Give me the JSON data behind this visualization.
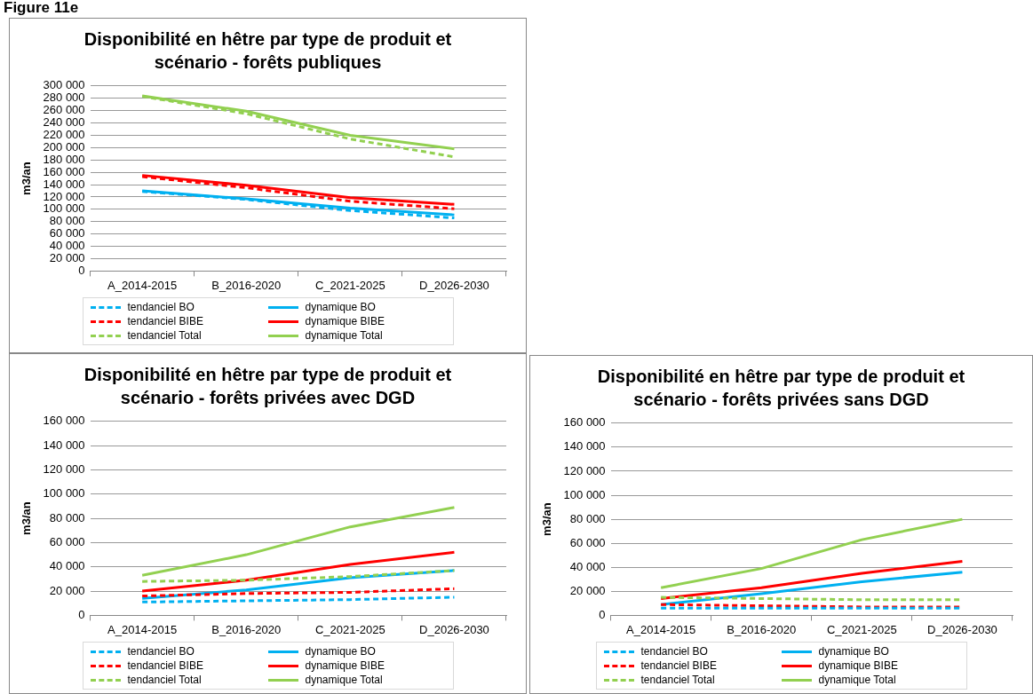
{
  "chart_data": [
    {
      "type": "line",
      "title": "Disponibilité en hêtre par type de produit et scénario - forêts publiques",
      "ylabel": "m3/an",
      "annotations": [
        "Figure 11e"
      ],
      "categories": [
        "A_2014-2015",
        "B_2016-2020",
        "C_2021-2025",
        "D_2026-2030"
      ],
      "ylim": [
        0,
        300000
      ],
      "yticks": [
        0,
        20000,
        40000,
        60000,
        80000,
        100000,
        120000,
        140000,
        160000,
        180000,
        200000,
        220000,
        240000,
        260000,
        280000,
        300000
      ],
      "grid": "y",
      "legend": "bottom",
      "marker": "none",
      "series": [
        {
          "name": "tendanciel BO",
          "color": "#00b0f0",
          "line_style": "dashed",
          "values": [
            129000,
            116000,
            98000,
            86000
          ]
        },
        {
          "name": "dynamique BO",
          "color": "#00b0f0",
          "line_style": "solid",
          "values": [
            130000,
            117000,
            102000,
            91000
          ]
        },
        {
          "name": "tendanciel BIBE",
          "color": "#ff0000",
          "line_style": "dashed",
          "values": [
            153000,
            135000,
            113000,
            101000
          ]
        },
        {
          "name": "dynamique BIBE",
          "color": "#ff0000",
          "line_style": "solid",
          "values": [
            155000,
            139000,
            119000,
            108000
          ]
        },
        {
          "name": "tendanciel Total",
          "color": "#92d050",
          "line_style": "dashed",
          "values": [
            283000,
            255000,
            214000,
            185000
          ]
        },
        {
          "name": "dynamique Total",
          "color": "#92d050",
          "line_style": "solid",
          "values": [
            284000,
            259000,
            220000,
            198000
          ]
        }
      ]
    },
    {
      "type": "line",
      "title": "Disponibilité en hêtre par type de produit et scénario - forêts privées avec DGD",
      "ylabel": "m3/an",
      "categories": [
        "A_2014-2015",
        "B_2016-2020",
        "C_2021-2025",
        "D_2026-2030"
      ],
      "ylim": [
        0,
        160000
      ],
      "yticks": [
        0,
        20000,
        40000,
        60000,
        80000,
        100000,
        120000,
        140000,
        160000
      ],
      "grid": "y",
      "legend": "bottom",
      "marker": "none",
      "series": [
        {
          "name": "tendanciel BO",
          "color": "#00b0f0",
          "line_style": "dashed",
          "values": [
            11000,
            12000,
            13000,
            15000
          ]
        },
        {
          "name": "dynamique BO",
          "color": "#00b0f0",
          "line_style": "solid",
          "values": [
            14000,
            21000,
            31000,
            37000
          ]
        },
        {
          "name": "tendanciel BIBE",
          "color": "#ff0000",
          "line_style": "dashed",
          "values": [
            16000,
            18000,
            19000,
            22000
          ]
        },
        {
          "name": "dynamique BIBE",
          "color": "#ff0000",
          "line_style": "solid",
          "values": [
            20000,
            29000,
            42000,
            52000
          ]
        },
        {
          "name": "tendanciel Total",
          "color": "#92d050",
          "line_style": "dashed",
          "values": [
            28000,
            29000,
            32000,
            37000
          ]
        },
        {
          "name": "dynamique Total",
          "color": "#92d050",
          "line_style": "solid",
          "values": [
            33000,
            50000,
            73000,
            89000
          ]
        }
      ]
    },
    {
      "type": "line",
      "title": "Disponibilité en hêtre par type de produit et scénario - forêts privées sans DGD",
      "ylabel": "m3/an",
      "categories": [
        "A_2014-2015",
        "B_2016-2020",
        "C_2021-2025",
        "D_2026-2030"
      ],
      "ylim": [
        0,
        160000
      ],
      "yticks": [
        0,
        20000,
        40000,
        60000,
        80000,
        100000,
        120000,
        140000,
        160000
      ],
      "grid": "y",
      "legend": "bottom",
      "marker": "none",
      "series": [
        {
          "name": "tendanciel BO",
          "color": "#00b0f0",
          "line_style": "dashed",
          "values": [
            6000,
            6000,
            6000,
            6000
          ]
        },
        {
          "name": "dynamique BO",
          "color": "#00b0f0",
          "line_style": "solid",
          "values": [
            9000,
            18000,
            28000,
            36000
          ]
        },
        {
          "name": "tendanciel BIBE",
          "color": "#ff0000",
          "line_style": "dashed",
          "values": [
            9000,
            8000,
            7000,
            7000
          ]
        },
        {
          "name": "dynamique BIBE",
          "color": "#ff0000",
          "line_style": "solid",
          "values": [
            14000,
            23000,
            35000,
            45000
          ]
        },
        {
          "name": "tendanciel Total",
          "color": "#92d050",
          "line_style": "dashed",
          "values": [
            15000,
            14000,
            13000,
            13000
          ]
        },
        {
          "name": "dynamique Total",
          "color": "#92d050",
          "line_style": "solid",
          "values": [
            23000,
            39000,
            63000,
            80000
          ]
        }
      ]
    }
  ]
}
